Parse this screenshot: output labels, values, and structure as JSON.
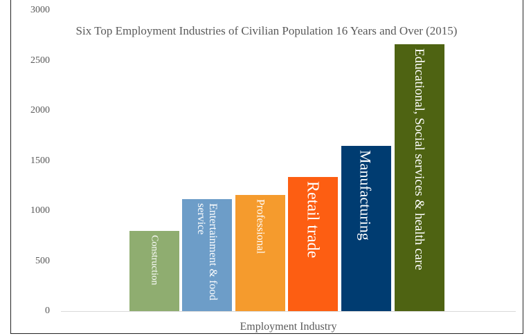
{
  "chart_data": {
    "type": "bar",
    "title": "Six Top Employment Industries of Civilian Population 16 Years and Over (2015)",
    "x_label": "Employment Industry",
    "categories": [
      "Construction",
      "Entertainment & food service",
      "Professional",
      "Retail trade",
      "Manufacturing",
      "Educational, Social services & health care"
    ],
    "values": [
      800,
      1120,
      1160,
      1340,
      1650,
      2660
    ],
    "colors": [
      "#8fad70",
      "#6d9dc8",
      "#f59b2d",
      "#fd5e12",
      "#003c71",
      "#4e6312"
    ],
    "ylim": [
      0,
      3000
    ],
    "yticks": [
      0,
      500,
      1000,
      1500,
      2000,
      2500,
      3000
    ],
    "grid": false
  }
}
